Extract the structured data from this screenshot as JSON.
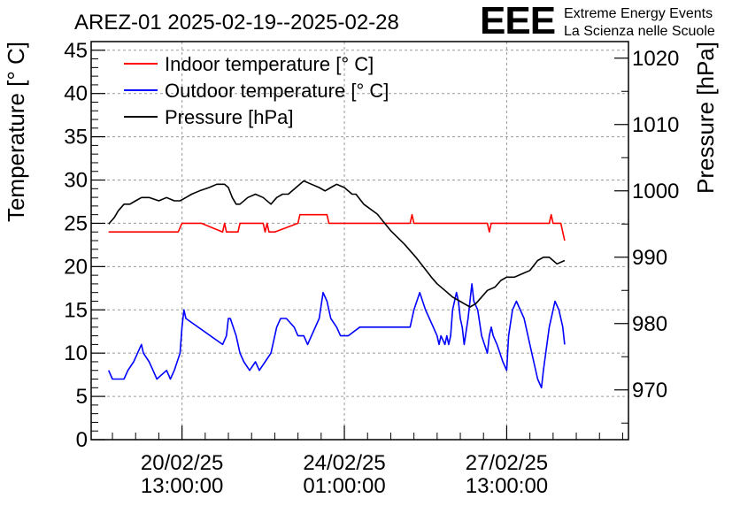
{
  "chart_data": {
    "type": "line",
    "title": "AREZ-01 2025-02-19--2025-02-28",
    "logo": {
      "mark": "EEE",
      "line1": "Extreme Energy Events",
      "line2": "La Scienza nelle Scuole"
    },
    "ylabel": "Temperature [° C]",
    "y2label": "Pressure [hPa]",
    "xlabel": "",
    "ylim": [
      0,
      46
    ],
    "y2lim": [
      962.5,
      1022.5
    ],
    "xlim": [
      -47,
      231
    ],
    "grid": true,
    "legend_position": "top-left",
    "y_ticks": [
      0,
      5,
      10,
      15,
      20,
      25,
      30,
      35,
      40,
      45
    ],
    "y2_ticks": [
      970,
      980,
      990,
      1000,
      1010,
      1020
    ],
    "x_ticks": [
      {
        "x": 0,
        "line1": "20/02/25",
        "line2": "13:00:00"
      },
      {
        "x": 84,
        "line1": "24/02/25",
        "line2": "01:00:00"
      },
      {
        "x": 168,
        "line1": "27/02/25",
        "line2": "13:00:00"
      }
    ],
    "series": [
      {
        "name": "Indoor temperature [° C]",
        "color": "#ff0000",
        "axis": "left",
        "x": [
          -38,
          -2,
          0,
          10,
          21,
          22,
          23,
          29,
          30,
          42,
          43,
          44,
          45,
          48,
          60,
          61,
          75,
          76,
          118,
          119,
          120,
          122,
          158,
          159,
          160,
          190,
          191,
          192,
          196,
          198
        ],
        "y": [
          24,
          24,
          25,
          25,
          24,
          25,
          24,
          24,
          25,
          25,
          24,
          25,
          24,
          24,
          25,
          26,
          26,
          25,
          25,
          26,
          25,
          25,
          25,
          24,
          25,
          25,
          26,
          25,
          25,
          23
        ]
      },
      {
        "name": "Outdoor temperature [° C]",
        "color": "#0000ff",
        "axis": "left",
        "x": [
          -38,
          -36,
          -30,
          -28,
          -25,
          -23,
          -21,
          -20,
          -17,
          -15,
          -13,
          -8,
          -6,
          -4,
          -1,
          0,
          1,
          2,
          21,
          23,
          24,
          25,
          28,
          30,
          32,
          35,
          38,
          40,
          43,
          46,
          49,
          51,
          54,
          58,
          60,
          63,
          65,
          67,
          71,
          73,
          75,
          77,
          80,
          82,
          86,
          92,
          118,
          120,
          123,
          126,
          128,
          130,
          132,
          133,
          134,
          136,
          137,
          138,
          139,
          140,
          142,
          143,
          144,
          145,
          146,
          148,
          150,
          151,
          153,
          155,
          158,
          159,
          160,
          161,
          163,
          166,
          168,
          169,
          171,
          173,
          177,
          180,
          182,
          184,
          186,
          187,
          190,
          193,
          195,
          197,
          198
        ],
        "y": [
          8,
          7,
          7,
          8,
          9,
          10,
          11,
          10,
          9,
          8,
          7,
          8,
          7,
          8,
          10,
          13,
          15,
          14,
          11,
          12,
          14,
          14,
          12,
          10,
          9,
          8,
          9,
          8,
          9,
          10,
          13,
          14,
          14,
          13,
          12,
          12,
          11,
          12,
          14,
          17,
          16,
          14,
          13,
          12,
          12,
          13,
          13,
          15,
          17,
          15,
          14,
          13,
          12,
          11,
          12,
          11,
          12,
          11,
          12,
          15,
          17,
          16,
          14,
          13,
          11,
          14,
          18,
          16,
          15,
          12,
          10,
          12,
          13,
          12,
          11,
          9,
          8,
          12,
          15,
          16,
          14,
          11,
          9,
          7,
          6,
          8,
          13,
          16,
          15,
          13,
          11
        ]
      },
      {
        "name": "Pressure [hPa]",
        "color": "#000000",
        "axis": "right",
        "x": [
          -38,
          -35,
          -33,
          -30,
          -27,
          -24,
          -21,
          -17,
          -12,
          -8,
          -4,
          -1,
          2,
          5,
          9,
          14,
          18,
          22,
          24,
          26,
          28,
          30,
          34,
          38,
          42,
          46,
          49,
          52,
          55,
          59,
          63,
          67,
          71,
          74,
          77,
          80,
          84,
          88,
          90,
          94,
          101,
          108,
          115,
          121,
          125,
          129,
          132,
          136,
          140,
          143,
          146,
          149,
          152,
          155,
          158,
          162,
          165,
          168,
          172,
          176,
          180,
          184,
          187,
          190,
          192,
          194,
          198
        ],
        "y": [
          995,
          996,
          997,
          998,
          998,
          998.5,
          999,
          999,
          998.5,
          999,
          998.5,
          998.5,
          999,
          999.5,
          1000,
          1000.5,
          1001,
          1001,
          1000.5,
          999,
          998,
          998,
          999,
          999.5,
          999,
          998,
          999,
          999.5,
          999.5,
          1000.5,
          1001.5,
          1001,
          1000.5,
          1000,
          1000.5,
          1001,
          1000.5,
          999.5,
          999.5,
          998,
          996.5,
          994,
          992,
          990,
          988.5,
          987,
          986,
          985,
          984,
          983.5,
          983,
          982.5,
          983,
          984,
          985,
          985.5,
          986.5,
          987,
          987,
          987.5,
          988,
          989.5,
          990,
          990,
          989.5,
          989,
          989.5
        ]
      }
    ]
  }
}
